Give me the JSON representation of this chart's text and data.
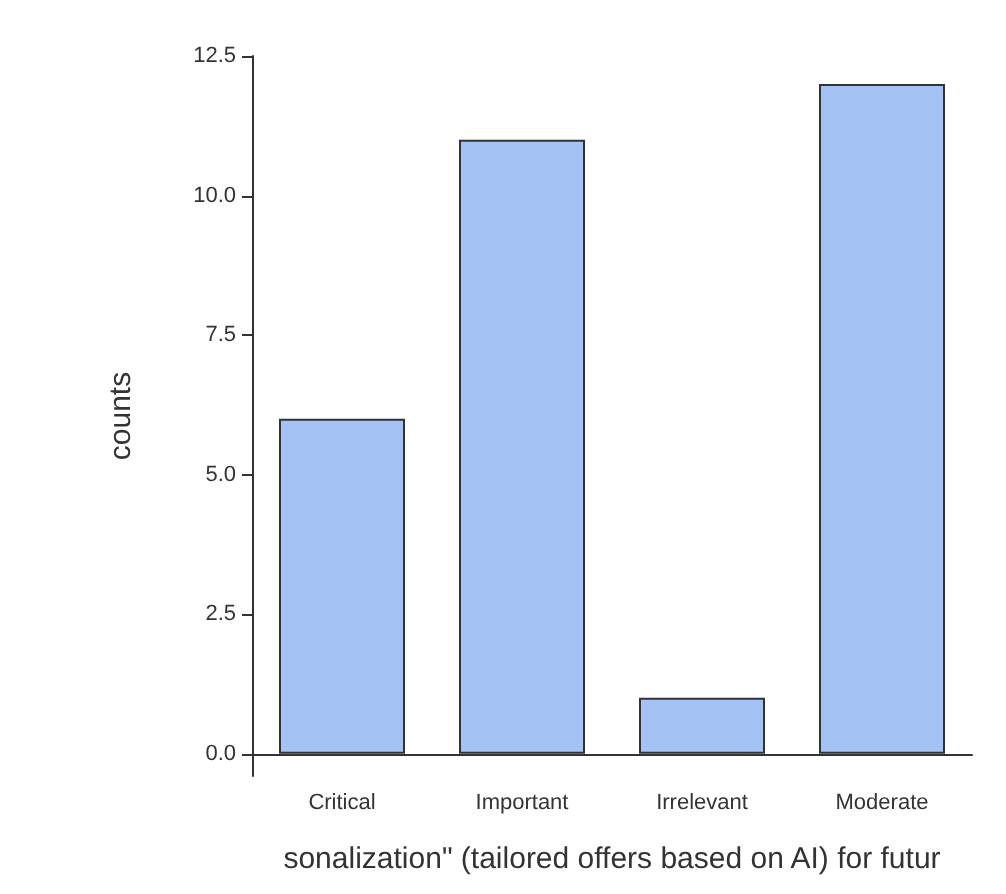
{
  "chart_data": {
    "type": "bar",
    "categories": [
      "Critical",
      "Important",
      "Irrelevant",
      "Moderate"
    ],
    "values": [
      6,
      11,
      1,
      12
    ],
    "color": "#a4c2f4",
    "ylim": [
      -0.4,
      12.5
    ],
    "yticks": [
      {
        "value": 0,
        "label": "0.0"
      },
      {
        "value": 2.5,
        "label": "2.5"
      },
      {
        "value": 5,
        "label": "5.0"
      },
      {
        "value": 7.5,
        "label": "7.5"
      },
      {
        "value": 10,
        "label": "10.0"
      },
      {
        "value": 12.5,
        "label": "12.5"
      }
    ],
    "ylabel": "counts",
    "xlabel": "sonalization\" (tailored offers based on AI) for futur",
    "grid": false
  }
}
